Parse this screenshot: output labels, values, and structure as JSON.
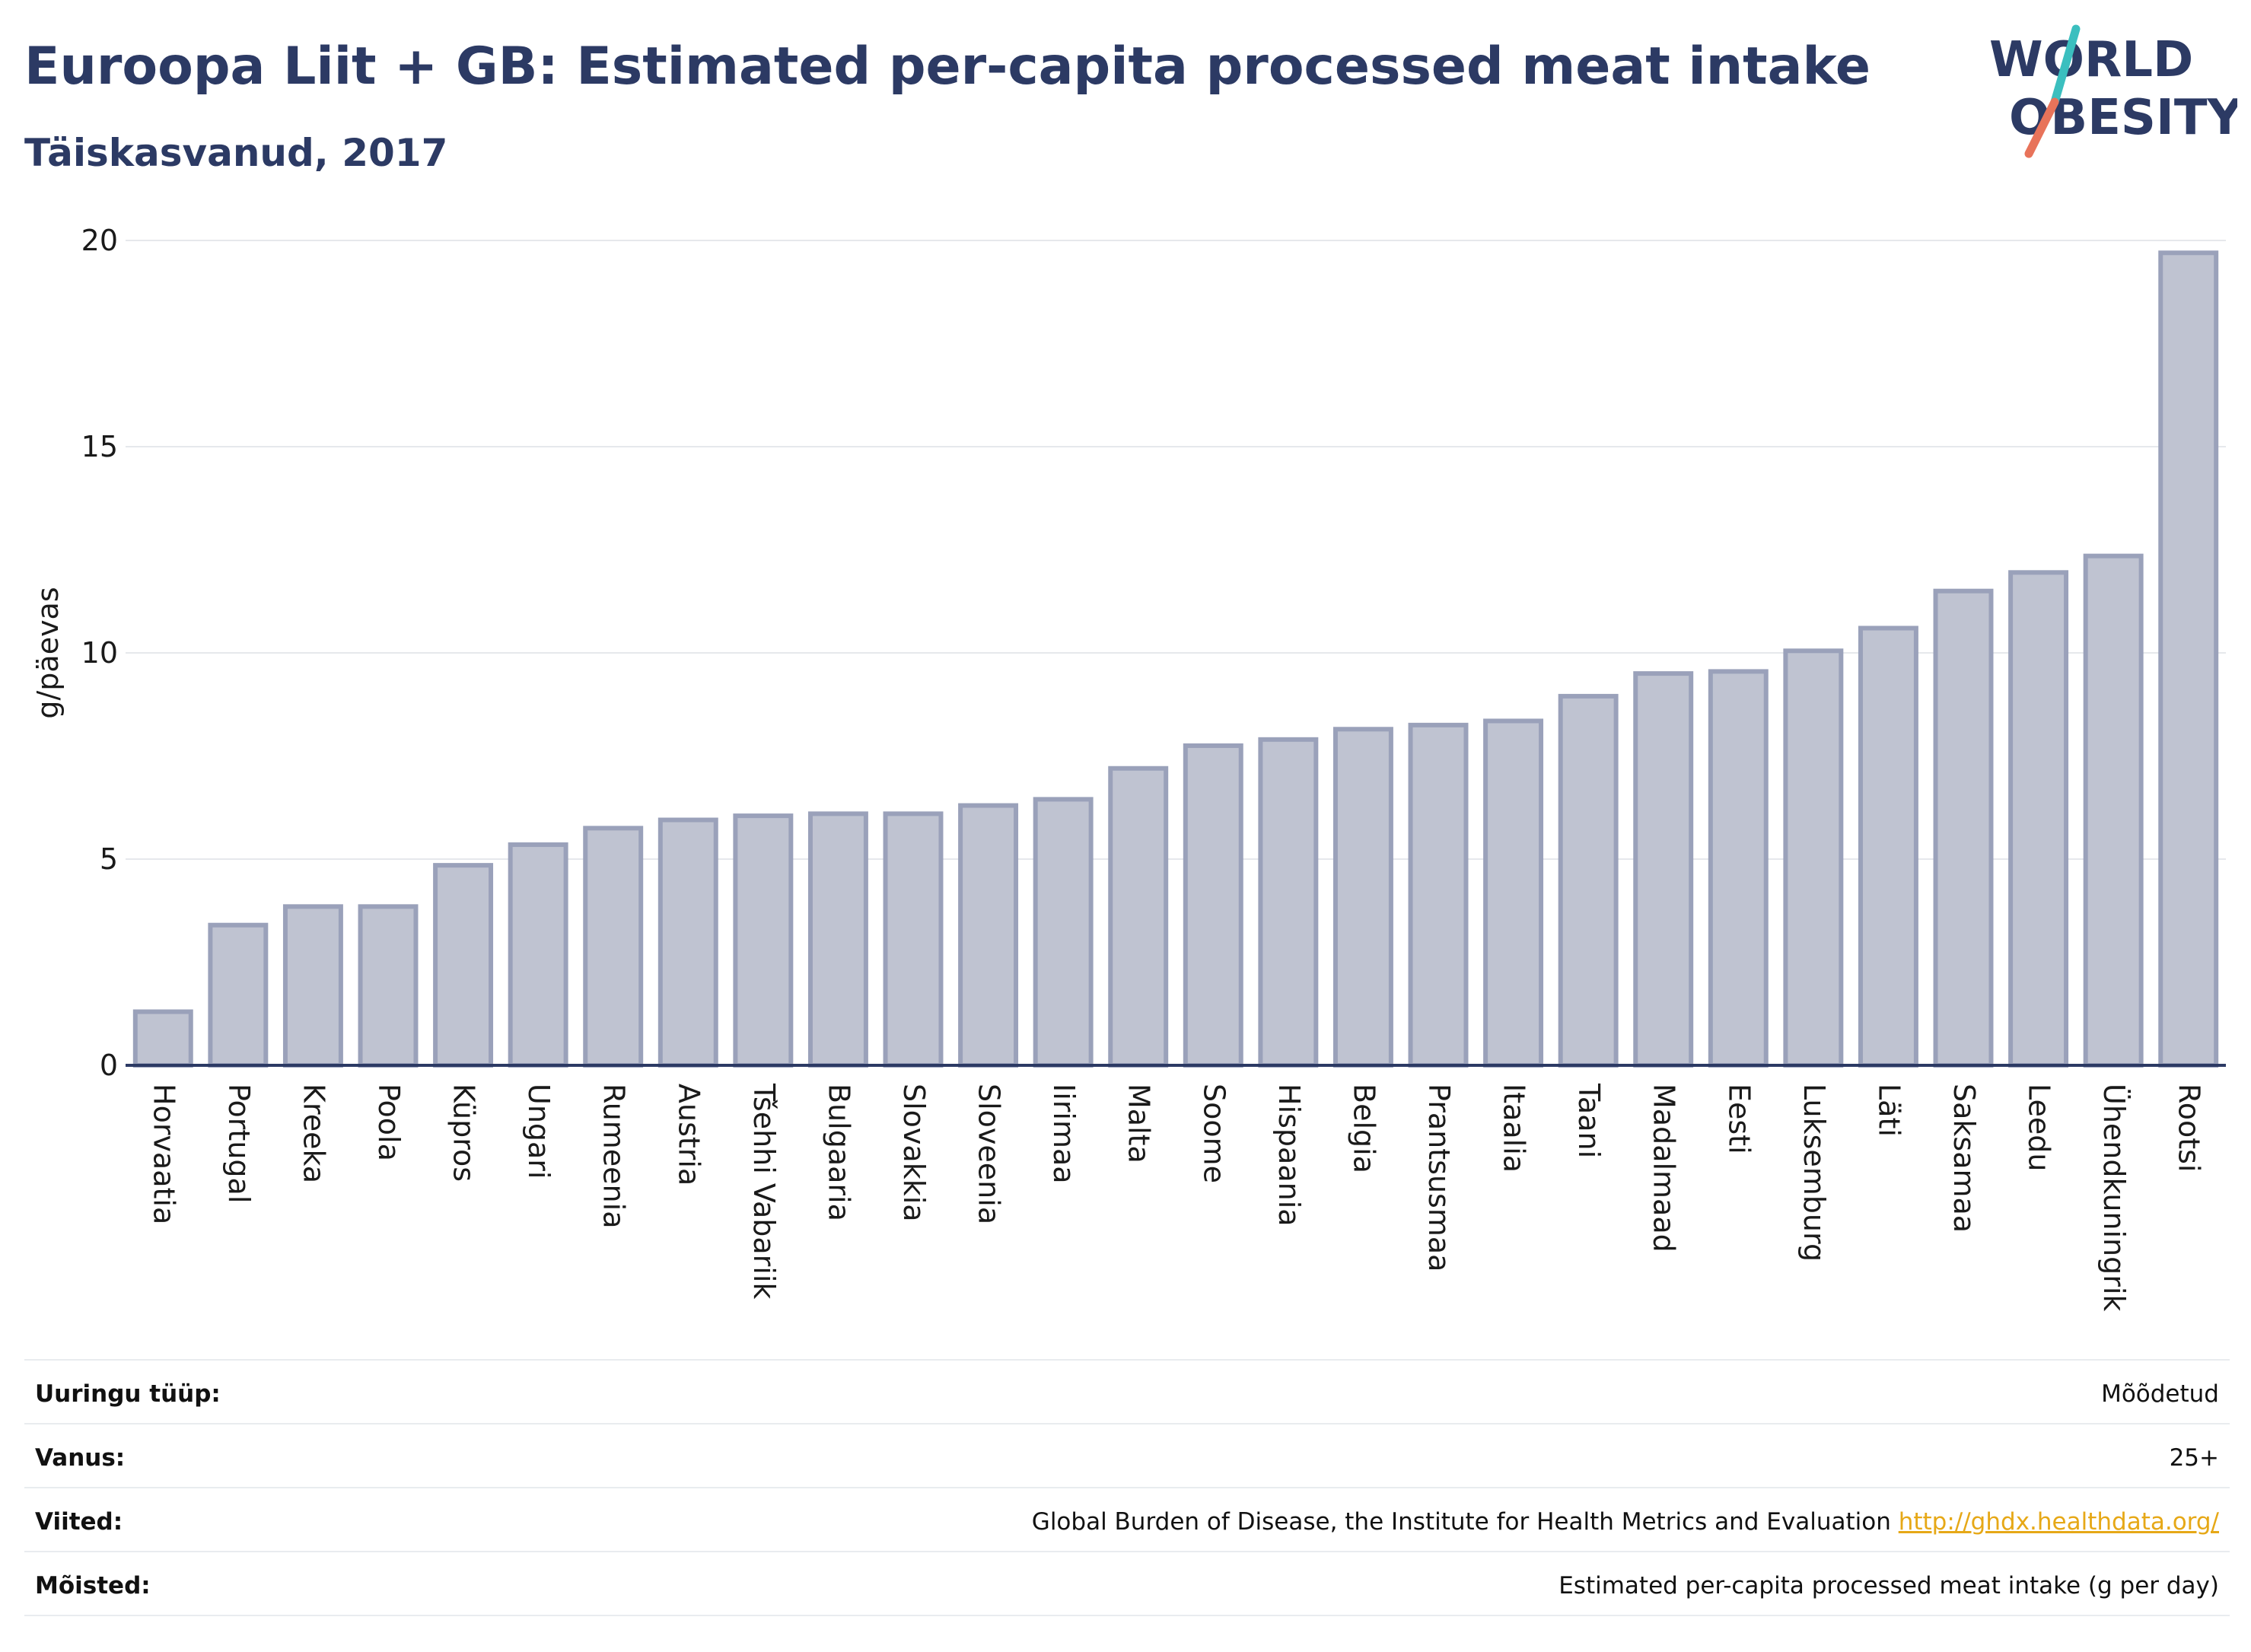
{
  "header": {
    "title": "Euroopa Liit + GB: Estimated per-capita processed meat intake",
    "subtitle": "Täiskasvanud, 2017"
  },
  "logo": {
    "line1": "WORLD",
    "line2": "OBESITY"
  },
  "colors": {
    "title": "#2c3a64",
    "bar_fill": "#bfc3d1",
    "bar_stroke": "#9aa1ba",
    "axis": "#2c3a64",
    "grid": "#e6e8ec",
    "logo_text": "#2c3a64",
    "logo_slash_top": "#3bbfbf",
    "logo_slash_bottom": "#e8735a",
    "link": "#e6a817"
  },
  "chart_data": {
    "type": "bar",
    "title": "Euroopa Liit + GB: Estimated per-capita processed meat intake",
    "subtitle": "Täiskasvanud, 2017",
    "xlabel": "",
    "ylabel": "g/päevas",
    "ylim": [
      0,
      20
    ],
    "yticks": [
      0,
      5,
      10,
      15,
      20
    ],
    "grid": true,
    "categories": [
      "Horvaatia",
      "Portugal",
      "Kreeka",
      "Poola",
      "Küpros",
      "Ungari",
      "Rumeenia",
      "Austria",
      "Tšehhi Vabariik",
      "Bulgaaria",
      "Slovakkia",
      "Sloveenia",
      "Iirimaa",
      "Malta",
      "Soome",
      "Hispaania",
      "Belgia",
      "Prantsusmaa",
      "Itaalia",
      "Taani",
      "Madalmaad",
      "Eesti",
      "Luksemburg",
      "Läti",
      "Saksamaa",
      "Leedu",
      "Ühendkuningrik",
      "Rootsi"
    ],
    "values": [
      1.3,
      3.4,
      3.85,
      3.85,
      4.85,
      5.35,
      5.75,
      5.95,
      6.05,
      6.1,
      6.1,
      6.3,
      6.45,
      7.2,
      7.75,
      7.9,
      8.15,
      8.25,
      8.35,
      8.95,
      9.5,
      9.55,
      10.05,
      10.6,
      11.5,
      11.95,
      12.35,
      19.7
    ]
  },
  "info": [
    {
      "key": "Uuringu tüüp:",
      "value": "Mõõdetud"
    },
    {
      "key": "Vanus:",
      "value": "25+"
    },
    {
      "key": "Viited:",
      "value": "Global Burden of Disease, the Institute for Health Metrics and Evaluation",
      "link": "http://ghdx.healthdata.org/"
    },
    {
      "key": "Mõisted:",
      "value": "Estimated per-capita processed meat intake (g per day)"
    }
  ]
}
